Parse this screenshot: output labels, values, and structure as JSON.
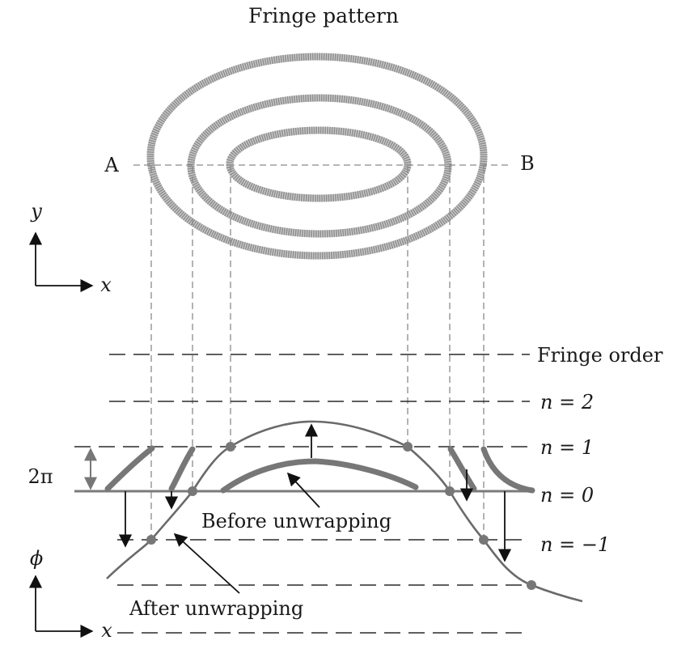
{
  "title": "Fringe pattern",
  "section_labels": {
    "point_a": "A",
    "point_b": "B"
  },
  "axes_top": {
    "y": "y",
    "x": "x"
  },
  "axes_bottom": {
    "y": "ϕ",
    "x": "x"
  },
  "fringe_order": {
    "header": "Fringe order",
    "levels": [
      "n = 2",
      "n = 1",
      "n = 0",
      "n = −1"
    ]
  },
  "period_label": "2π",
  "annotations": {
    "before": "Before unwrapping",
    "after": "After unwrapping"
  },
  "colors": {
    "fringe": "#8f8f8f",
    "curve": "#6a6a6a",
    "ink": "#111111"
  }
}
